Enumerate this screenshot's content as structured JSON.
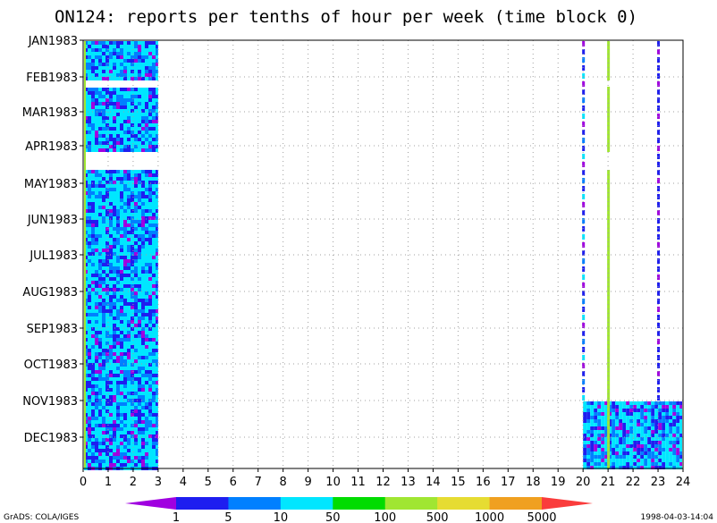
{
  "chart_data": {
    "type": "heatmap",
    "title": "ON124: reports per tenths of hour per week (time block 0)",
    "x_ticks": [
      "0",
      "1",
      "2",
      "3",
      "4",
      "5",
      "6",
      "7",
      "8",
      "9",
      "10",
      "11",
      "12",
      "13",
      "14",
      "15",
      "16",
      "17",
      "18",
      "19",
      "20",
      "21",
      "22",
      "23",
      "24"
    ],
    "xlim": [
      0,
      24
    ],
    "y_ticks": [
      "JAN1983",
      "FEB1983",
      "MAR1983",
      "APR1983",
      "MAY1983",
      "JUN1983",
      "JUL1983",
      "AUG1983",
      "SEP1983",
      "OCT1983",
      "NOV1983",
      "DEC1983"
    ],
    "grid": true,
    "legend": {
      "placement": "bottom",
      "bins": [
        {
          "label": "",
          "color": "#a000e0"
        },
        {
          "label": "1",
          "color": "#1e1ef0"
        },
        {
          "label": "5",
          "color": "#0080ff"
        },
        {
          "label": "10",
          "color": "#00e6ff"
        },
        {
          "label": "50",
          "color": "#00dc00"
        },
        {
          "label": "100",
          "color": "#a0e632"
        },
        {
          "label": "500",
          "color": "#e6dc32"
        },
        {
          "label": "1000",
          "color": "#f0a020"
        },
        {
          "label": "5000",
          "color": "#fa3c3c"
        }
      ]
    },
    "colors": {
      "purple": "#a000e0",
      "blue": "#1e1ef0",
      "medblue": "#0080ff",
      "cyan": "#00e6ff",
      "yellowgreen": "#a0e632"
    },
    "data_regions": [
      {
        "x_range": [
          0,
          3
        ],
        "period": "JAN1983-DEC1983",
        "typical_bins": [
          "1",
          "5",
          "10"
        ]
      },
      {
        "x_range": [
          20,
          24
        ],
        "period": "NOV1983-DEC1983",
        "typical_bins": [
          "1",
          "5",
          "10"
        ]
      },
      {
        "x": 20,
        "period": "JAN1983-NOV1983",
        "typical_bins": [
          "below 1",
          "1",
          "5"
        ]
      },
      {
        "x": 21,
        "period": "JAN1983-DEC1983",
        "typical_bins": [
          "100"
        ]
      },
      {
        "x": 23,
        "period": "JAN1983-NOV1983",
        "typical_bins": [
          "below 1",
          "1"
        ]
      }
    ]
  },
  "footer": {
    "left": "GrADS: COLA/IGES",
    "right": "1998-04-03-14:04"
  }
}
